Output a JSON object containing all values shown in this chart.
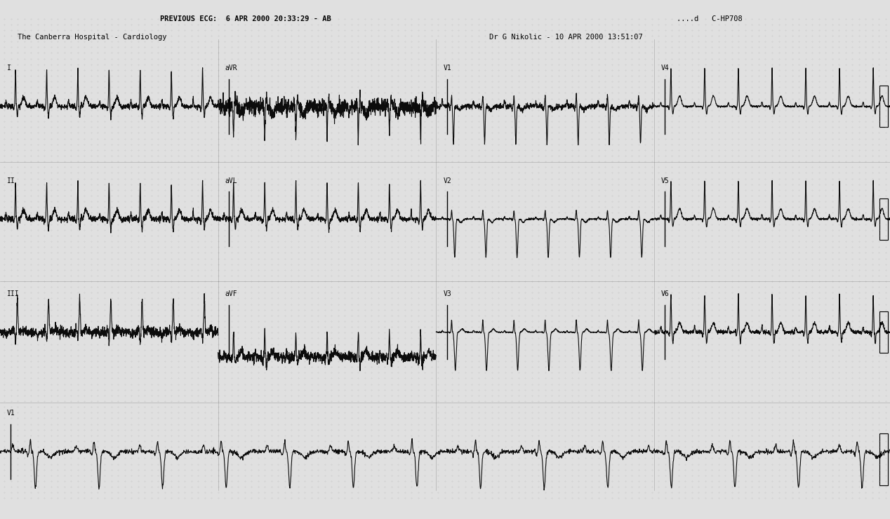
{
  "title_left": "PREVIOUS ECG:  6 APR 2000 20:33:29 - AB",
  "title_left2": "The Canberra Hospital - Cardiology",
  "title_right": "....d   C-HP708",
  "title_right2": "Dr G Nikolic - 10 APR 2000 13:51:07",
  "bg_color": "#e0e0e0",
  "line_color": "#000000",
  "fig_width": 12.68,
  "fig_height": 7.4
}
